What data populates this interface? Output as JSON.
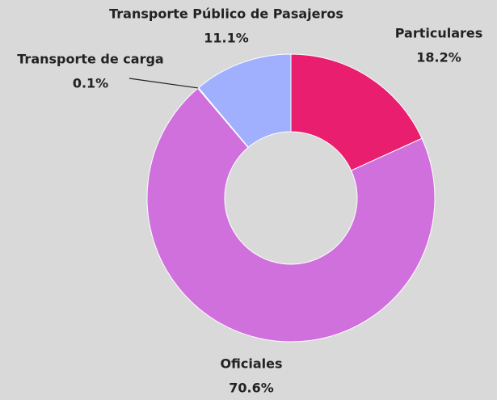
{
  "chart_data": {
    "type": "donut",
    "categories": [
      "Particulares",
      "Oficiales",
      "Transporte de carga",
      "Transporte Público de Pasajeros"
    ],
    "values": [
      18.2,
      70.6,
      0.1,
      11.1
    ],
    "value_labels": [
      "18.2%",
      "70.6%",
      "0.1%",
      "11.1%"
    ],
    "colors": [
      "#e91e6f",
      "#d070dc",
      "#7f8cff",
      "#a0b0ff"
    ]
  }
}
